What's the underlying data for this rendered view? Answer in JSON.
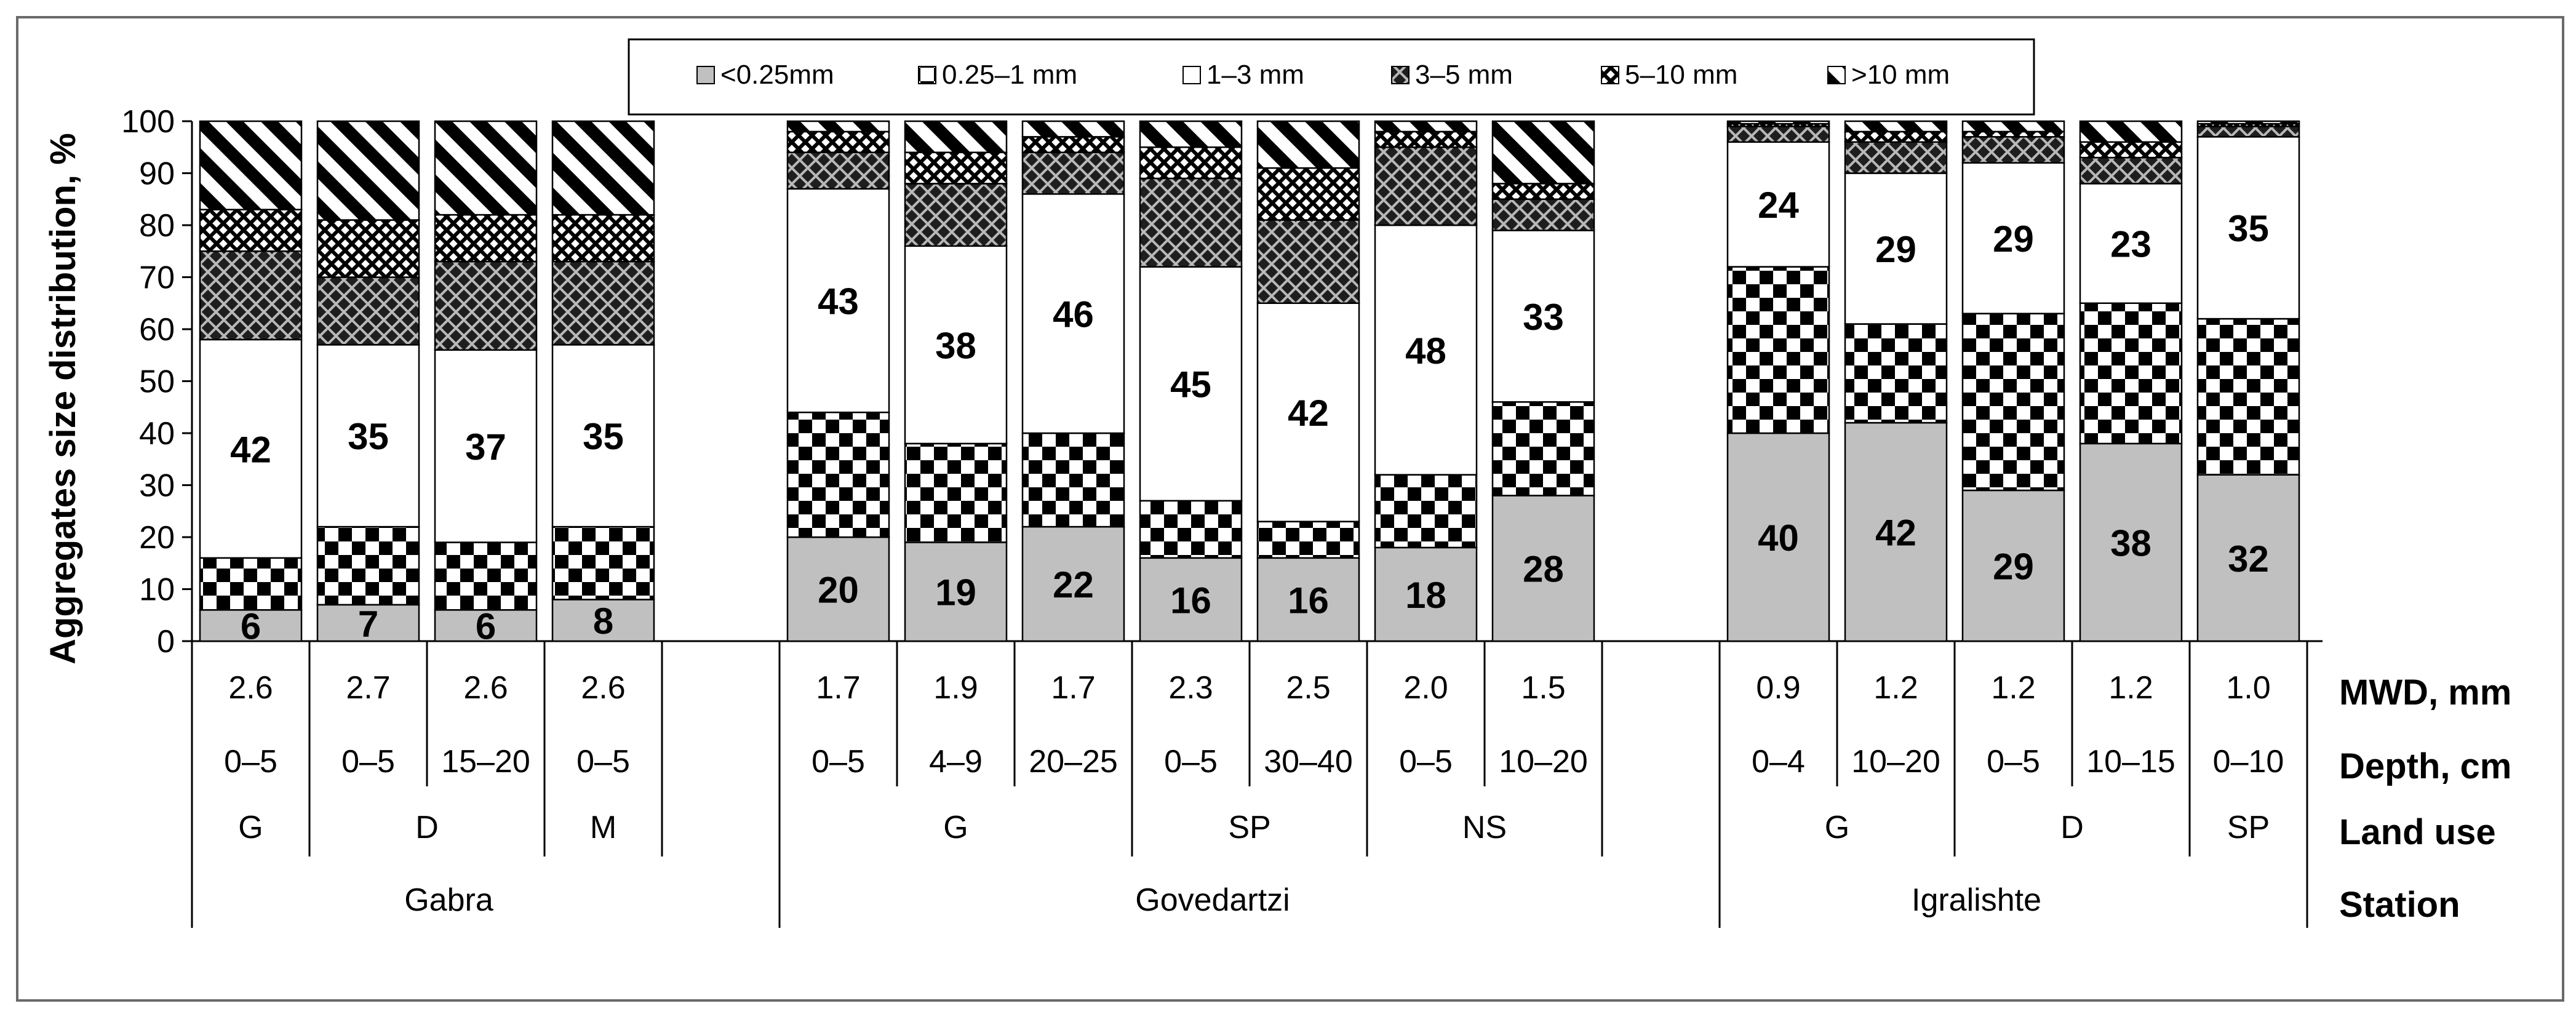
{
  "chart_data": {
    "type": "bar",
    "stacked": true,
    "ylabel": "Aggregates size distribution, %",
    "ylim": [
      0,
      100
    ],
    "yticks": [
      "0",
      "10",
      "20",
      "30",
      "40",
      "50",
      "60",
      "70",
      "80",
      "90",
      "100"
    ],
    "grid": false,
    "legend_position": "top",
    "colors": {
      "fraction_lt_025": "#c0c0c0",
      "pattern_fg": "#000000",
      "background": "#ffffff",
      "frame": "#000000"
    },
    "legend": [
      {
        "key": "f1",
        "label": "<0.25mm"
      },
      {
        "key": "f2",
        "label": "0.25–1 mm"
      },
      {
        "key": "f3",
        "label": "1–3 mm"
      },
      {
        "key": "f4",
        "label": "3–5 mm"
      },
      {
        "key": "f5",
        "label": "5–10 mm"
      },
      {
        "key": "f6",
        "label": ">10 mm"
      }
    ],
    "series_names": [
      "<0.25mm",
      "0.25–1 mm",
      "1–3 mm",
      "3–5 mm",
      "5–10 mm",
      ">10 mm"
    ],
    "bars": [
      {
        "mwd": "2.6",
        "depth": "0–5",
        "values": [
          6,
          10,
          42,
          17,
          8,
          17
        ],
        "labels": [
          "6",
          "42"
        ]
      },
      {
        "mwd": "2.7",
        "depth": "0–5",
        "values": [
          7,
          15,
          35,
          13,
          11,
          19
        ],
        "labels": [
          "7",
          "35"
        ]
      },
      {
        "mwd": "2.6",
        "depth": "15–20",
        "values": [
          6,
          13,
          37,
          17,
          9,
          18
        ],
        "labels": [
          "6",
          "37"
        ]
      },
      {
        "mwd": "2.6",
        "depth": "0–5",
        "values": [
          8,
          14,
          35,
          16,
          9,
          18
        ],
        "labels": [
          "8",
          "35"
        ]
      },
      {
        "mwd": "1.7",
        "depth": "0–5",
        "values": [
          20,
          24,
          43,
          7,
          4,
          2
        ],
        "labels": [
          "20",
          "43"
        ]
      },
      {
        "mwd": "1.9",
        "depth": "4–9",
        "values": [
          19,
          19,
          38,
          12,
          6,
          6
        ],
        "labels": [
          "19",
          "38"
        ]
      },
      {
        "mwd": "1.7",
        "depth": "20–25",
        "values": [
          22,
          18,
          46,
          8,
          3,
          3
        ],
        "labels": [
          "22",
          "46"
        ]
      },
      {
        "mwd": "2.3",
        "depth": "0–5",
        "values": [
          16,
          11,
          45,
          17,
          6,
          5
        ],
        "labels": [
          "16",
          "45"
        ]
      },
      {
        "mwd": "2.5",
        "depth": "30–40",
        "values": [
          16,
          7,
          42,
          16,
          10,
          9
        ],
        "labels": [
          "16",
          "42"
        ]
      },
      {
        "mwd": "2.0",
        "depth": "0–5",
        "values": [
          18,
          14,
          48,
          15,
          3,
          2
        ],
        "labels": [
          "18",
          "48"
        ]
      },
      {
        "mwd": "1.5",
        "depth": "10–20",
        "values": [
          28,
          18,
          33,
          6,
          3,
          12
        ],
        "labels": [
          "28",
          "33"
        ]
      },
      {
        "mwd": "0.9",
        "depth": "0–4",
        "values": [
          40,
          32,
          24,
          3,
          0.5,
          0.5
        ],
        "labels": [
          "40",
          "24"
        ]
      },
      {
        "mwd": "1.2",
        "depth": "10–20",
        "values": [
          42,
          19,
          29,
          6,
          2,
          2
        ],
        "labels": [
          "42",
          "29"
        ]
      },
      {
        "mwd": "1.2",
        "depth": "0–5",
        "values": [
          29,
          34,
          29,
          5,
          1,
          2
        ],
        "labels": [
          "29",
          "29"
        ]
      },
      {
        "mwd": "1.2",
        "depth": "10–15",
        "values": [
          38,
          27,
          23,
          5,
          3,
          4
        ],
        "labels": [
          "38",
          "23"
        ]
      },
      {
        "mwd": "1.0",
        "depth": "0–10",
        "values": [
          32,
          30,
          35,
          2,
          0.5,
          0.5
        ],
        "labels": [
          "32",
          "35"
        ]
      }
    ],
    "land_use_groups": [
      {
        "label": "G",
        "bars": [
          0
        ]
      },
      {
        "label": "D",
        "bars": [
          1,
          2
        ]
      },
      {
        "label": "M",
        "bars": [
          3
        ]
      },
      {
        "label": "G",
        "bars": [
          4,
          5,
          6
        ]
      },
      {
        "label": "SP",
        "bars": [
          7,
          8
        ]
      },
      {
        "label": "NS",
        "bars": [
          9,
          10
        ]
      },
      {
        "label": "G",
        "bars": [
          11,
          12
        ]
      },
      {
        "label": "D",
        "bars": [
          13,
          14
        ]
      },
      {
        "label": "SP",
        "bars": [
          15
        ]
      }
    ],
    "stations": [
      {
        "label": "Gabra",
        "bars": [
          0,
          3
        ]
      },
      {
        "label": "Govedartzi",
        "bars": [
          4,
          10
        ]
      },
      {
        "label": "Igralishte",
        "bars": [
          11,
          15
        ]
      }
    ],
    "row_labels": {
      "mwd": "MWD, mm",
      "depth": "Depth, cm",
      "land_use": "Land use",
      "station": "Station"
    }
  }
}
